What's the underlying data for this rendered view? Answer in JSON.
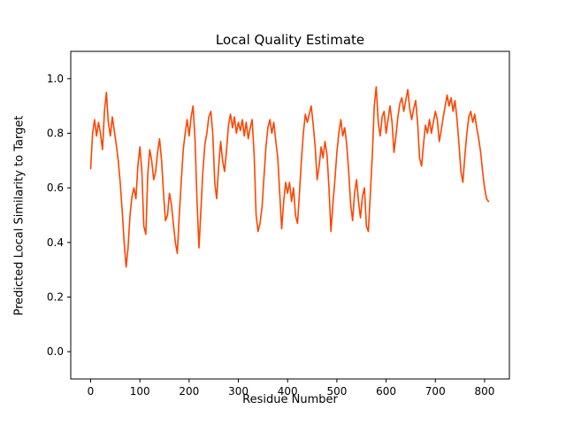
{
  "figure": {
    "title": "Local Quality Estimate",
    "xlabel": "Residue Number",
    "ylabel": "Predicted Local Similarity to Target"
  },
  "chart_data": {
    "type": "line",
    "title": "Local Quality Estimate",
    "xlabel": "Residue Number",
    "ylabel": "Predicted Local Similarity to Target",
    "line_color": "#ff4500",
    "background_color": "#ffffff",
    "grid": false,
    "legend": false,
    "xlim": [
      -40.4,
      850.4
    ],
    "ylim": [
      -0.1,
      1.1
    ],
    "x_ticks": [
      0,
      100,
      200,
      300,
      400,
      500,
      600,
      700,
      800
    ],
    "y_ticks": [
      0.0,
      0.2,
      0.4,
      0.6,
      0.8,
      1.0
    ],
    "x_start": 0,
    "x_step": 4,
    "values": [
      0.67,
      0.8,
      0.85,
      0.79,
      0.84,
      0.8,
      0.74,
      0.88,
      0.95,
      0.84,
      0.79,
      0.86,
      0.81,
      0.76,
      0.7,
      0.62,
      0.52,
      0.4,
      0.31,
      0.38,
      0.5,
      0.57,
      0.6,
      0.56,
      0.68,
      0.75,
      0.66,
      0.46,
      0.43,
      0.65,
      0.74,
      0.7,
      0.63,
      0.66,
      0.73,
      0.78,
      0.7,
      0.58,
      0.48,
      0.5,
      0.58,
      0.54,
      0.47,
      0.4,
      0.36,
      0.5,
      0.62,
      0.74,
      0.8,
      0.85,
      0.79,
      0.86,
      0.9,
      0.78,
      0.55,
      0.38,
      0.52,
      0.66,
      0.76,
      0.8,
      0.86,
      0.88,
      0.8,
      0.62,
      0.56,
      0.68,
      0.77,
      0.7,
      0.66,
      0.74,
      0.83,
      0.87,
      0.82,
      0.86,
      0.8,
      0.84,
      0.81,
      0.85,
      0.79,
      0.84,
      0.78,
      0.82,
      0.85,
      0.72,
      0.5,
      0.44,
      0.47,
      0.53,
      0.64,
      0.75,
      0.82,
      0.85,
      0.8,
      0.84,
      0.77,
      0.71,
      0.58,
      0.45,
      0.55,
      0.62,
      0.58,
      0.62,
      0.55,
      0.6,
      0.5,
      0.47,
      0.58,
      0.7,
      0.8,
      0.87,
      0.84,
      0.87,
      0.9,
      0.83,
      0.75,
      0.63,
      0.68,
      0.75,
      0.71,
      0.77,
      0.72,
      0.6,
      0.44,
      0.54,
      0.63,
      0.73,
      0.8,
      0.85,
      0.79,
      0.82,
      0.76,
      0.66,
      0.54,
      0.48,
      0.58,
      0.63,
      0.55,
      0.49,
      0.57,
      0.6,
      0.46,
      0.44,
      0.58,
      0.72,
      0.9,
      0.97,
      0.84,
      0.79,
      0.86,
      0.88,
      0.8,
      0.85,
      0.9,
      0.84,
      0.73,
      0.79,
      0.86,
      0.91,
      0.93,
      0.88,
      0.92,
      0.96,
      0.89,
      0.85,
      0.89,
      0.92,
      0.84,
      0.71,
      0.68,
      0.76,
      0.83,
      0.8,
      0.85,
      0.8,
      0.84,
      0.88,
      0.85,
      0.77,
      0.81,
      0.86,
      0.9,
      0.94,
      0.9,
      0.93,
      0.88,
      0.92,
      0.85,
      0.76,
      0.66,
      0.62,
      0.72,
      0.8,
      0.86,
      0.88,
      0.84,
      0.87,
      0.82,
      0.78,
      0.73,
      0.66,
      0.6,
      0.56,
      0.55
    ]
  }
}
